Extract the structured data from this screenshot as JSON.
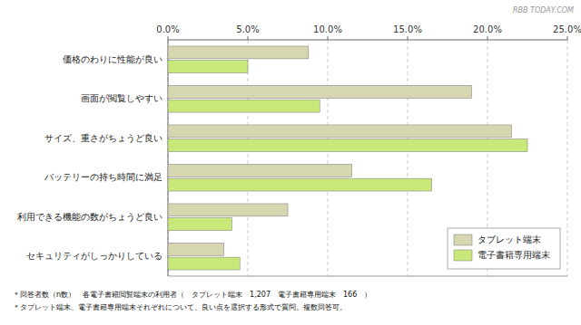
{
  "chart_data": {
    "type": "bar",
    "orientation": "horizontal",
    "categories": [
      "価格のわりに性能が良い",
      "画面が閲覧しやすい",
      "サイズ、重さがちょうど良い",
      "バッテリーの持ち時間に満足",
      "利用できる機能の数がちょうど良い",
      "セキュリティがしっかりしている"
    ],
    "series": [
      {
        "name": "タブレット端末",
        "color": "#d6d6b0",
        "values": [
          8.8,
          19.0,
          21.5,
          11.5,
          7.5,
          3.5
        ]
      },
      {
        "name": "電子書籍専用端末",
        "color": "#c8e87a",
        "values": [
          5.0,
          9.5,
          22.5,
          16.5,
          4.0,
          4.5
        ]
      }
    ],
    "xlim": [
      0,
      25.0
    ],
    "xticks": [
      {
        "value": 0.0,
        "label": "0.0%"
      },
      {
        "value": 5.0,
        "label": "5.0%"
      },
      {
        "value": 10.0,
        "label": "10.0%"
      },
      {
        "value": 15.0,
        "label": "15.0%"
      },
      {
        "value": 20.0,
        "label": "20.0%"
      },
      {
        "value": 25.0,
        "label": "25.0%"
      }
    ],
    "grid": true,
    "legend": "lower right",
    "annotations": [
      "＊回答者数（n数）　各電子書籍閲覧端末の利用者（　タブレット端末　1,207　電子書籍専用端末　166　）",
      "＊タブレット端末、電子書籍専用端末それぞれについて、良い点を選択する形式で質問。複数回答可。",
      "RBB TODAY.COM"
    ]
  }
}
